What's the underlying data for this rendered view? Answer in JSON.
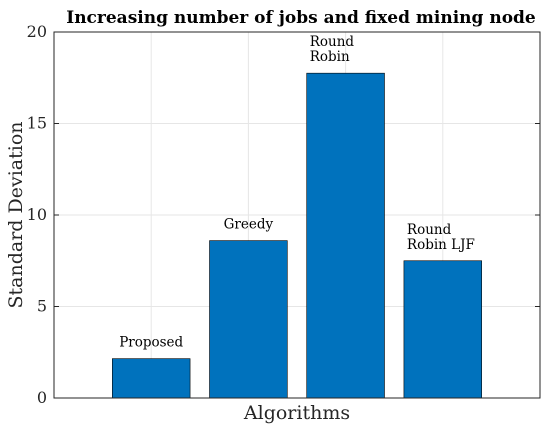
{
  "chart_data": {
    "type": "bar",
    "title": "Increasing number of jobs and fixed  mining node",
    "xlabel": "Algorithms",
    "ylabel": "Standard Deviation",
    "ylim": [
      0,
      20
    ],
    "yticks": [
      "0",
      "5",
      "10",
      "15",
      "20"
    ],
    "categories": [
      "Proposed",
      "Greedy",
      "Round Robin",
      "Round Robin LJF"
    ],
    "values": [
      2.15,
      8.6,
      17.75,
      7.5
    ],
    "data_labels": [
      [
        "Proposed"
      ],
      [
        "Greedy"
      ],
      [
        "Round",
        "Robin"
      ],
      [
        "Round",
        "Robin LJF"
      ]
    ],
    "grid": true,
    "bar_color": "#0072BD"
  }
}
